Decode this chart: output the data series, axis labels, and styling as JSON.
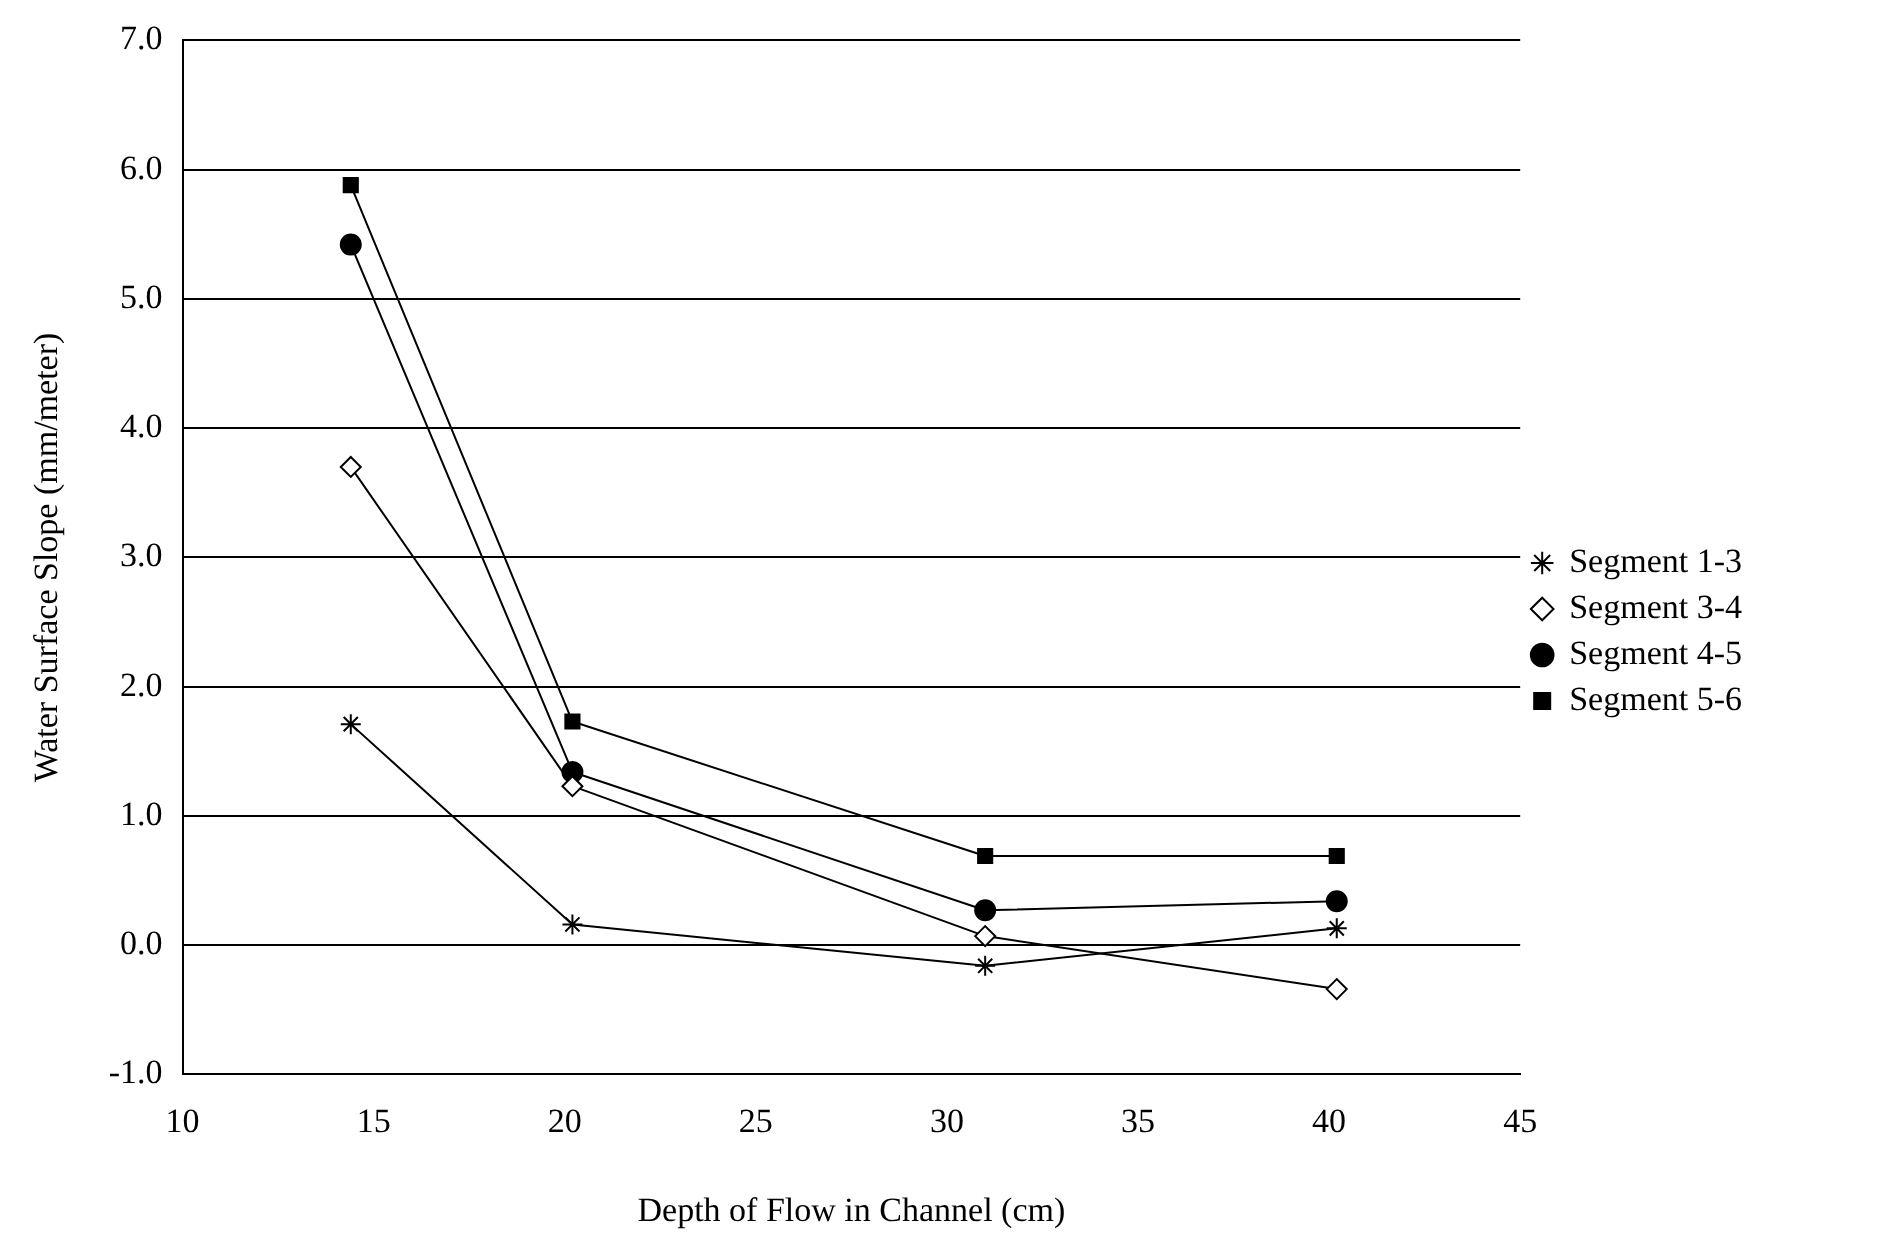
{
  "chart_data": {
    "type": "line",
    "xlabel": "Depth of Flow in Channel (cm)",
    "ylabel": "Water Surface Slope (mm/meter)",
    "x": [
      14.4,
      20.2,
      31.0,
      40.2
    ],
    "series": [
      {
        "name": "Segment 1-3",
        "color": "#000000",
        "marker": "cross",
        "values": [
          1.71,
          0.16,
          -0.16,
          0.13
        ]
      },
      {
        "name": "Segment 3-4",
        "color": "#000000",
        "marker": "diamond",
        "values": [
          3.7,
          1.23,
          0.07,
          -0.34
        ]
      },
      {
        "name": "Segment 4-5",
        "color": "#000000",
        "marker": "circle",
        "values": [
          5.42,
          1.34,
          0.27,
          0.34
        ]
      },
      {
        "name": "Segment 5-6",
        "color": "#000000",
        "marker": "square",
        "values": [
          5.88,
          1.73,
          0.69,
          0.69
        ]
      }
    ],
    "xlim": [
      10,
      45
    ],
    "xticks": [
      10,
      15,
      20,
      25,
      30,
      35,
      40,
      45
    ],
    "ylim": [
      -1,
      7
    ],
    "yticks": [
      {
        "value": -1,
        "label": "-1.0"
      },
      {
        "value": 0,
        "label": "0.0"
      },
      {
        "value": 1,
        "label": "1.0"
      },
      {
        "value": 2,
        "label": "2.0"
      },
      {
        "value": 3,
        "label": "3.0"
      },
      {
        "value": 4,
        "label": "4.0"
      },
      {
        "value": 5,
        "label": "5.0"
      },
      {
        "value": 6,
        "label": "6.0"
      },
      {
        "value": 7,
        "label": "7.0"
      }
    ],
    "grid": "y",
    "legend": "right",
    "line_style": "solid"
  }
}
